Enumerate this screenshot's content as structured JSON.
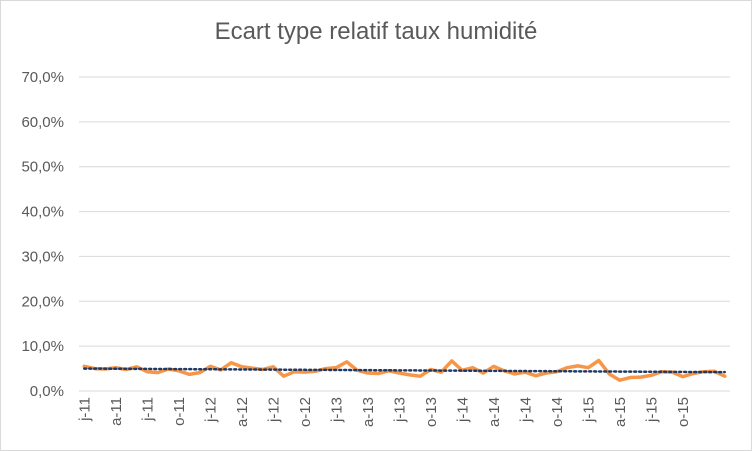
{
  "chart_data": {
    "type": "line",
    "title": "Ecart type relatif taux humidité",
    "ylim": [
      0,
      0.7
    ],
    "y_ticks": [
      "0,0%",
      "10,0%",
      "20,0%",
      "30,0%",
      "40,0%",
      "50,0%",
      "60,0%",
      "70,0%"
    ],
    "x_ticks": [
      "j-11",
      "a-11",
      "j-11",
      "o-11",
      "j-12",
      "a-12",
      "j-12",
      "o-12",
      "j-13",
      "a-13",
      "j-13",
      "o-13",
      "j-14",
      "a-14",
      "j-14",
      "o-14",
      "j-15",
      "a-15",
      "j-15",
      "o-15"
    ],
    "grid": true,
    "legend": "none",
    "series": [
      {
        "kind": "data",
        "color": "#f79646",
        "values": [
          0.055,
          0.05,
          0.049,
          0.052,
          0.048,
          0.054,
          0.043,
          0.041,
          0.049,
          0.045,
          0.037,
          0.041,
          0.055,
          0.047,
          0.063,
          0.054,
          0.051,
          0.048,
          0.054,
          0.033,
          0.043,
          0.042,
          0.044,
          0.05,
          0.052,
          0.065,
          0.046,
          0.04,
          0.039,
          0.045,
          0.04,
          0.036,
          0.033,
          0.048,
          0.042,
          0.067,
          0.046,
          0.052,
          0.04,
          0.055,
          0.045,
          0.038,
          0.042,
          0.034,
          0.04,
          0.043,
          0.052,
          0.056,
          0.052,
          0.068,
          0.038,
          0.024,
          0.03,
          0.031,
          0.035,
          0.043,
          0.042,
          0.032,
          0.039,
          0.043,
          0.044,
          0.033
        ]
      },
      {
        "kind": "trend",
        "color": "#1f3864",
        "values": [
          0.05,
          0.042
        ]
      }
    ]
  }
}
